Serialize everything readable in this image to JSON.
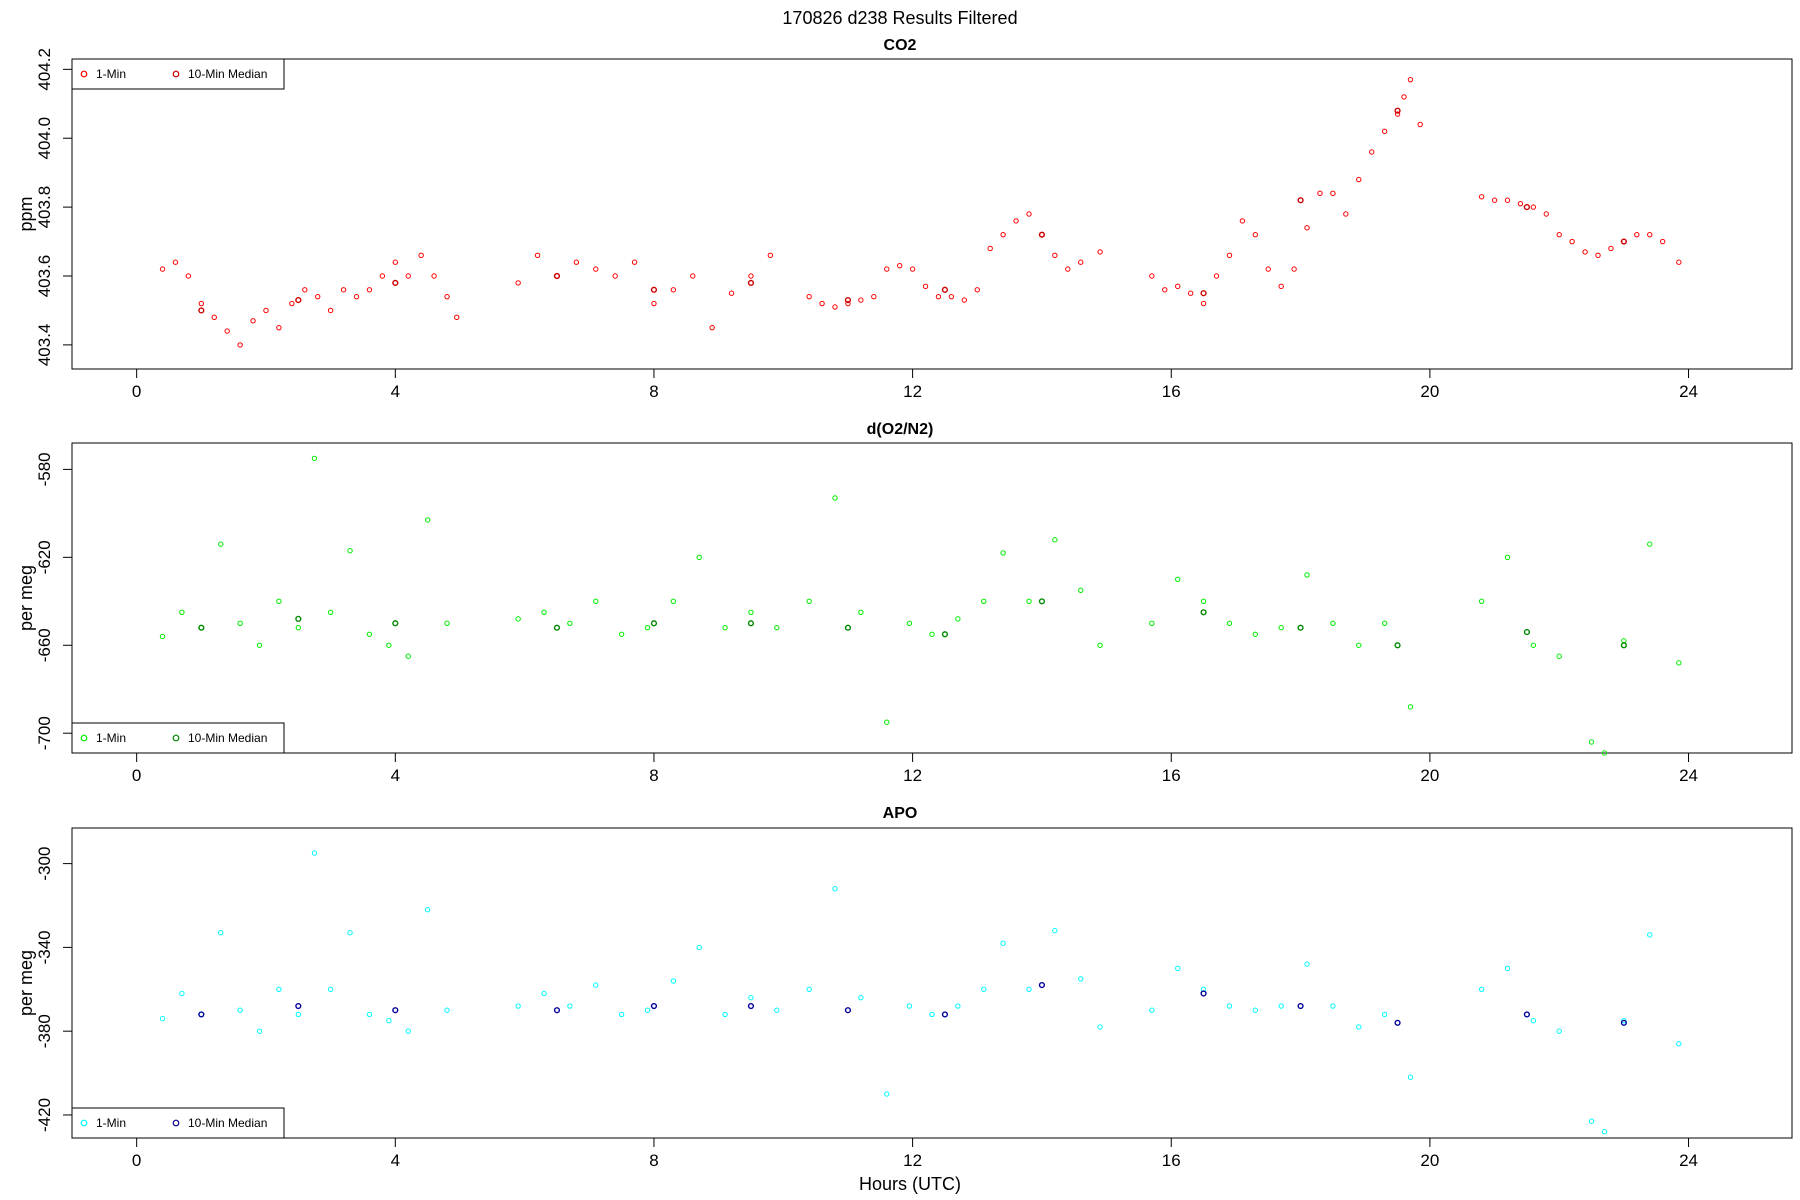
{
  "figure": {
    "title": "170826   d238   Results Filtered"
  },
  "chart_data": [
    {
      "type": "scatter",
      "title": "CO2",
      "ylabel": "ppm",
      "xlabel": "",
      "xlim": [
        -1,
        25.6
      ],
      "ylim": [
        403.33,
        404.23
      ],
      "xticks": [
        "0",
        "4",
        "8",
        "12",
        "16",
        "20",
        "24"
      ],
      "yticks": [
        "403.4",
        "403.6",
        "403.8",
        "404.0",
        "404.2"
      ],
      "legend_position": "top-left",
      "series": [
        {
          "name": "1-Min",
          "color": "#ff0000",
          "x": [
            0.4,
            0.6,
            0.8,
            1.0,
            1.2,
            1.4,
            1.6,
            1.8,
            2.0,
            2.2,
            2.4,
            2.6,
            2.8,
            3.0,
            3.2,
            3.4,
            3.6,
            3.8,
            4.0,
            4.2,
            4.4,
            4.6,
            4.8,
            4.95,
            5.9,
            6.2,
            6.5,
            6.8,
            7.1,
            7.4,
            7.7,
            8.0,
            8.3,
            8.6,
            8.9,
            9.2,
            9.5,
            9.8,
            10.4,
            10.6,
            10.8,
            11.0,
            11.2,
            11.4,
            11.6,
            11.8,
            12.0,
            12.2,
            12.4,
            12.6,
            12.8,
            13.0,
            13.2,
            13.4,
            13.6,
            13.8,
            14.0,
            14.2,
            14.4,
            14.6,
            14.9,
            15.7,
            15.9,
            16.1,
            16.3,
            16.5,
            16.7,
            16.9,
            17.1,
            17.3,
            17.5,
            17.7,
            17.9,
            18.1,
            18.3,
            18.5,
            18.7,
            18.9,
            19.1,
            19.3,
            19.5,
            19.6,
            19.7,
            19.85,
            20.8,
            21.0,
            21.2,
            21.4,
            21.6,
            21.8,
            22.0,
            22.2,
            22.4,
            22.6,
            22.8,
            23.0,
            23.2,
            23.4,
            23.6,
            23.85
          ],
          "y": [
            403.62,
            403.64,
            403.6,
            403.52,
            403.48,
            403.44,
            403.4,
            403.47,
            403.5,
            403.45,
            403.52,
            403.56,
            403.54,
            403.5,
            403.56,
            403.54,
            403.56,
            403.6,
            403.64,
            403.6,
            403.66,
            403.6,
            403.54,
            403.48,
            403.58,
            403.66,
            403.6,
            403.64,
            403.62,
            403.6,
            403.64,
            403.52,
            403.56,
            403.6,
            403.45,
            403.55,
            403.6,
            403.66,
            403.54,
            403.52,
            403.51,
            403.52,
            403.53,
            403.54,
            403.62,
            403.63,
            403.62,
            403.57,
            403.54,
            403.54,
            403.53,
            403.56,
            403.68,
            403.72,
            403.76,
            403.78,
            403.72,
            403.66,
            403.62,
            403.64,
            403.67,
            403.6,
            403.56,
            403.57,
            403.55,
            403.52,
            403.6,
            403.66,
            403.76,
            403.72,
            403.62,
            403.57,
            403.62,
            403.74,
            403.84,
            403.84,
            403.78,
            403.88,
            403.96,
            404.02,
            404.07,
            404.12,
            404.17,
            404.04,
            403.83,
            403.82,
            403.82,
            403.81,
            403.8,
            403.78,
            403.72,
            403.7,
            403.67,
            403.66,
            403.68,
            403.7,
            403.72,
            403.72,
            403.7,
            403.64
          ]
        },
        {
          "name": "10-Min Median",
          "color": "#cc0000",
          "x": [
            1.0,
            2.5,
            4.0,
            6.5,
            8.0,
            9.5,
            11.0,
            12.5,
            14.0,
            16.5,
            18.0,
            19.5,
            21.5,
            23.0
          ],
          "y": [
            403.5,
            403.53,
            403.58,
            403.6,
            403.56,
            403.58,
            403.53,
            403.56,
            403.72,
            403.55,
            403.82,
            404.08,
            403.8,
            403.7
          ]
        }
      ]
    },
    {
      "type": "scatter",
      "title": "d(O2/N2)",
      "ylabel": "per meg",
      "xlabel": "",
      "xlim": [
        -1,
        25.6
      ],
      "ylim": [
        -709,
        -568
      ],
      "xticks": [
        "0",
        "4",
        "8",
        "12",
        "16",
        "20",
        "24"
      ],
      "yticks": [
        "-700",
        "-660",
        "-620",
        "-580"
      ],
      "legend_position": "bottom-left",
      "series": [
        {
          "name": "1-Min",
          "color": "#00ee00",
          "x": [
            0.4,
            0.7,
            1.0,
            1.3,
            1.6,
            1.9,
            2.2,
            2.5,
            2.75,
            3.0,
            3.3,
            3.6,
            3.9,
            4.2,
            4.5,
            4.8,
            5.9,
            6.3,
            6.7,
            7.1,
            7.5,
            7.9,
            8.3,
            8.7,
            9.1,
            9.5,
            9.9,
            10.4,
            10.8,
            11.2,
            11.6,
            11.95,
            12.3,
            12.7,
            13.1,
            13.4,
            13.8,
            14.2,
            14.6,
            14.9,
            15.7,
            16.1,
            16.5,
            16.9,
            17.3,
            17.7,
            18.1,
            18.5,
            18.9,
            19.3,
            19.7,
            20.8,
            21.2,
            21.6,
            22.0,
            22.5,
            22.7,
            23.0,
            23.4,
            23.85
          ],
          "y": [
            -656,
            -645,
            -652,
            -614,
            -650,
            -660,
            -640,
            -652,
            -575,
            -645,
            -617,
            -655,
            -660,
            -665,
            -603,
            -650,
            -648,
            -645,
            -650,
            -640,
            -655,
            -652,
            -640,
            -620,
            -652,
            -645,
            -652,
            -640,
            -593,
            -645,
            -695,
            -650,
            -655,
            -648,
            -640,
            -618,
            -640,
            -612,
            -635,
            -660,
            -650,
            -630,
            -640,
            -650,
            -655,
            -652,
            -628,
            -650,
            -660,
            -650,
            -688,
            -640,
            -620,
            -660,
            -665,
            -704,
            -709,
            -658,
            -614,
            -668
          ]
        },
        {
          "name": "10-Min Median",
          "color": "#008800",
          "x": [
            1.0,
            2.5,
            4.0,
            6.5,
            8.0,
            9.5,
            11.0,
            12.5,
            14.0,
            16.5,
            18.0,
            19.5,
            21.5,
            23.0
          ],
          "y": [
            -652,
            -648,
            -650,
            -652,
            -650,
            -650,
            -652,
            -655,
            -640,
            -645,
            -652,
            -660,
            -654,
            -660
          ]
        }
      ]
    },
    {
      "type": "scatter",
      "title": "APO",
      "ylabel": "per meg",
      "xlabel": "Hours (UTC)",
      "xlim": [
        -1,
        25.6
      ],
      "ylim": [
        -431,
        -283
      ],
      "xticks": [
        "0",
        "4",
        "8",
        "12",
        "16",
        "20",
        "24"
      ],
      "yticks": [
        "-420",
        "-380",
        "-340",
        "-300"
      ],
      "legend_position": "bottom-left",
      "series": [
        {
          "name": "1-Min",
          "color": "#00ffff",
          "x": [
            0.4,
            0.7,
            1.0,
            1.3,
            1.6,
            1.9,
            2.2,
            2.5,
            2.75,
            3.0,
            3.3,
            3.6,
            3.9,
            4.2,
            4.5,
            4.8,
            5.9,
            6.3,
            6.7,
            7.1,
            7.5,
            7.9,
            8.3,
            8.7,
            9.1,
            9.5,
            9.9,
            10.4,
            10.8,
            11.2,
            11.6,
            11.95,
            12.3,
            12.7,
            13.1,
            13.4,
            13.8,
            14.2,
            14.6,
            14.9,
            15.7,
            16.1,
            16.5,
            16.9,
            17.3,
            17.7,
            18.1,
            18.5,
            18.9,
            19.3,
            19.7,
            20.8,
            21.2,
            21.6,
            22.0,
            22.5,
            22.7,
            23.0,
            23.4,
            23.85
          ],
          "y": [
            -374,
            -362,
            -372,
            -333,
            -370,
            -380,
            -360,
            -372,
            -295,
            -360,
            -333,
            -372,
            -375,
            -380,
            -322,
            -370,
            -368,
            -362,
            -368,
            -358,
            -372,
            -370,
            -356,
            -340,
            -372,
            -364,
            -370,
            -360,
            -312,
            -364,
            -410,
            -368,
            -372,
            -368,
            -360,
            -338,
            -360,
            -332,
            -355,
            -378,
            -370,
            -350,
            -360,
            -368,
            -370,
            -368,
            -348,
            -368,
            -378,
            -372,
            -402,
            -360,
            -350,
            -375,
            -380,
            -423,
            -428,
            -375,
            -334,
            -386
          ]
        },
        {
          "name": "10-Min Median",
          "color": "#000099",
          "x": [
            1.0,
            2.5,
            4.0,
            6.5,
            8.0,
            9.5,
            11.0,
            12.5,
            14.0,
            16.5,
            18.0,
            19.5,
            21.5,
            23.0
          ],
          "y": [
            -372,
            -368,
            -370,
            -370,
            -368,
            -368,
            -370,
            -372,
            -358,
            -362,
            -368,
            -376,
            -372,
            -376
          ]
        }
      ]
    }
  ]
}
